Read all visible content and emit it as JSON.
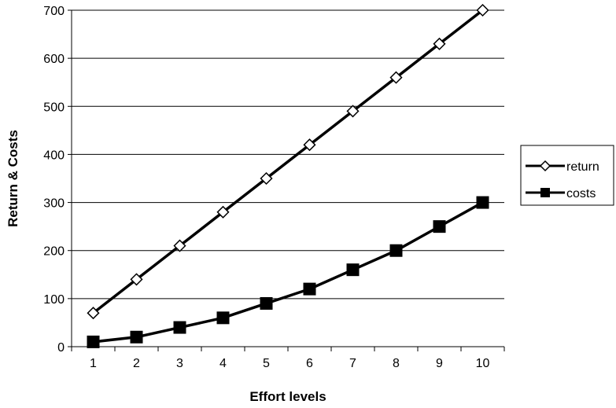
{
  "chart_data": {
    "type": "line",
    "title": "",
    "xlabel": "Effort levels",
    "ylabel": "Return & Costs",
    "categories": [
      "1",
      "2",
      "3",
      "4",
      "5",
      "6",
      "7",
      "8",
      "9",
      "10"
    ],
    "ylim": [
      0,
      700
    ],
    "yticks": [
      "0",
      "100",
      "200",
      "300",
      "400",
      "500",
      "600",
      "700"
    ],
    "grid": true,
    "legend_position": "right",
    "series": [
      {
        "name": "return",
        "marker": "open-diamond",
        "color": "#000000",
        "values": [
          70,
          140,
          210,
          280,
          350,
          420,
          490,
          560,
          630,
          700
        ]
      },
      {
        "name": "costs",
        "marker": "filled-square",
        "color": "#000000",
        "values": [
          10,
          20,
          40,
          60,
          90,
          120,
          160,
          200,
          250,
          300
        ]
      }
    ]
  }
}
